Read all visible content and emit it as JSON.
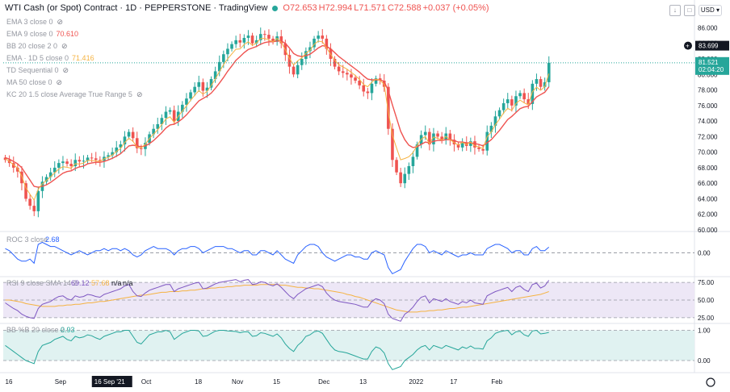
{
  "header": {
    "title": "WTI Cash (or Spot) Contract · 1D · PEPPERSTONE · TradingView",
    "open": "O72.653",
    "high": "H72.994",
    "low": "L71.571",
    "close": "C72.588",
    "change": "+0.037 (+0.05%)",
    "currency": "USD"
  },
  "indicators": [
    {
      "label": "EMA 3 close 0",
      "value": "",
      "color": "#9598a1"
    },
    {
      "label": "EMA 9 close 0",
      "value": "70.610",
      "color": "#ef5350"
    },
    {
      "label": "BB 20 close 2 0",
      "value": "",
      "color": "#9598a1"
    },
    {
      "label": "EMA · 1D 5 close 0",
      "value": "71.416",
      "color": "#f5b342"
    },
    {
      "label": "TD Sequential 0",
      "value": "",
      "color": "#9598a1"
    },
    {
      "label": "MA 50 close 0",
      "value": "",
      "color": "#9598a1"
    },
    {
      "label": "KC 20 1.5 close Average True Range 5",
      "value": "",
      "color": "#9598a1"
    }
  ],
  "colors": {
    "up": "#26a69a",
    "down": "#ef5350",
    "ema9": "#ef5350",
    "ema5": "#f5b342",
    "roc": "#2962ff",
    "rsi": "#7e57c2",
    "rsisma": "#f5b342",
    "bbpct": "#26a69a",
    "rsifill": "#ede7f6",
    "bbfill": "#e0f2f1",
    "label_blue": "#131722"
  },
  "chart_data": [
    {
      "type": "candlestick",
      "y_ticks": [
        "86.000",
        "84.000",
        "82.000",
        "80.000",
        "78.000",
        "76.000",
        "74.000",
        "72.000",
        "70.000",
        "68.000",
        "66.000",
        "64.000",
        "62.000",
        "60.000"
      ],
      "ylim": [
        60,
        87.5
      ],
      "labels": {
        "level": "83.699",
        "last_price": "81.521",
        "countdown": "02:04:20"
      },
      "closes": [
        69.0,
        68.6,
        68.0,
        67.5,
        66.0,
        64.0,
        63.1,
        62.4,
        65.0,
        66.2,
        66.8,
        67.4,
        68.0,
        68.6,
        68.8,
        68.5,
        68.2,
        69.0,
        68.8,
        68.9,
        69.3,
        69.2,
        69.0,
        68.9,
        69.4,
        69.6,
        70.0,
        70.6,
        71.0,
        72.0,
        72.6,
        71.8,
        70.5,
        70.4,
        71.2,
        72.3,
        73.0,
        73.6,
        74.4,
        75.2,
        75.4,
        74.0,
        75.2,
        76.1,
        76.9,
        77.7,
        78.4,
        79.0,
        77.9,
        78.3,
        79.4,
        80.4,
        81.6,
        82.6,
        83.3,
        83.9,
        84.4,
        84.1,
        84.7,
        85.0,
        84.0,
        84.4,
        85.2,
        85.1,
        84.6,
        84.2,
        84.9,
        84.0,
        82.5,
        81.0,
        80.0,
        81.2,
        82.0,
        83.0,
        83.5,
        84.6,
        85.0,
        84.6,
        83.3,
        82.0,
        81.0,
        80.4,
        80.2,
        80.0,
        79.6,
        79.2,
        78.6,
        77.8,
        77.6,
        78.8,
        79.5,
        79.2,
        78.4,
        73.0,
        69.0,
        67.4,
        66.0,
        67.2,
        68.2,
        69.4,
        71.0,
        72.2,
        72.6,
        71.0,
        72.4,
        72.0,
        71.6,
        72.4,
        71.6,
        71.0,
        70.6,
        71.2,
        70.8,
        71.4,
        70.6,
        70.4,
        70.2,
        72.6,
        73.4,
        74.6,
        75.4,
        76.3,
        76.8,
        76.0,
        77.2,
        77.6,
        76.8,
        76.2,
        78.8,
        79.4,
        78.4,
        79.0,
        81.5
      ],
      "ema9": [
        69.3,
        69.1,
        68.8,
        68.5,
        68.0,
        67.2,
        66.4,
        65.6,
        65.5,
        65.6,
        65.8,
        66.1,
        66.5,
        66.9,
        67.3,
        67.5,
        67.6,
        67.9,
        68.1,
        68.2,
        68.5,
        68.6,
        68.7,
        68.7,
        68.8,
        69.0,
        69.2,
        69.5,
        69.8,
        70.3,
        70.8,
        70.9,
        70.8,
        70.7,
        70.8,
        71.1,
        71.5,
        72.0,
        72.5,
        73.1,
        73.5,
        73.6,
        73.9,
        74.3,
        74.8,
        75.4,
        76.0,
        76.6,
        76.9,
        77.2,
        77.6,
        78.2,
        78.9,
        79.6,
        80.4,
        81.1,
        81.8,
        82.3,
        82.8,
        83.2,
        83.4,
        83.6,
        83.9,
        84.1,
        84.2,
        84.2,
        84.3,
        84.3,
        84.0,
        83.4,
        82.7,
        82.4,
        82.3,
        82.4,
        82.6,
        83.0,
        83.4,
        83.7,
        83.6,
        83.3,
        82.8,
        82.3,
        81.9,
        81.5,
        81.1,
        80.7,
        80.3,
        79.8,
        79.4,
        79.3,
        79.3,
        79.3,
        79.1,
        77.9,
        76.1,
        74.4,
        72.7,
        71.6,
        70.9,
        70.6,
        70.7,
        71.0,
        71.3,
        71.2,
        71.4,
        71.5,
        71.5,
        71.6,
        71.6,
        71.5,
        71.3,
        71.3,
        71.2,
        71.2,
        71.1,
        71.0,
        70.8,
        71.2,
        71.6,
        72.2,
        72.8,
        73.5,
        74.2,
        74.6,
        75.1,
        75.6,
        75.8,
        75.9,
        76.5,
        77.1,
        77.4,
        77.7,
        78.4
      ]
    },
    {
      "type": "line",
      "name": "ROC 3 close",
      "value": "2.68",
      "y_ticks": [
        "0.00"
      ],
      "baseline": 0,
      "ylim": [
        -11,
        9
      ],
      "values": [
        2,
        1,
        -1,
        -3,
        -4,
        -4,
        -3,
        -5,
        4,
        5,
        4,
        3,
        3,
        2,
        1,
        0,
        -1,
        0,
        1,
        0,
        -1,
        0,
        1,
        1,
        2,
        1,
        2,
        2,
        1,
        2,
        1,
        -1,
        -2,
        -1,
        1,
        2,
        3,
        2,
        2,
        2,
        1,
        -1,
        1,
        2,
        2,
        3,
        3,
        2,
        0,
        1,
        2,
        3,
        3,
        3,
        2,
        2,
        1,
        0,
        1,
        1,
        -1,
        -1,
        1,
        1,
        0,
        -1,
        1,
        -1,
        -3,
        -4,
        -5,
        -1,
        1,
        3,
        4,
        4,
        3,
        0,
        -2,
        -3,
        -4,
        -3,
        -2,
        -1,
        -1,
        -2,
        -2,
        -3,
        -3,
        0,
        1,
        0,
        -1,
        -7,
        -10,
        -9,
        -8,
        -4,
        -1,
        2,
        4,
        4,
        3,
        0,
        1,
        0,
        -1,
        1,
        0,
        -1,
        -2,
        -1,
        -1,
        0,
        -1,
        -1,
        -1,
        2,
        3,
        4,
        4,
        3,
        2,
        0,
        1,
        1,
        -1,
        -1,
        2,
        3,
        1,
        1,
        2.68
      ]
    },
    {
      "type": "line",
      "name": "RSI 9 close SMA 14 2",
      "values_label": [
        "69.12",
        "57.68",
        "n/a",
        "n/a"
      ],
      "y_ticks": [
        "75.00",
        "50.00",
        "25.00"
      ],
      "band": [
        25,
        75
      ],
      "ylim": [
        18,
        82
      ],
      "rsi": [
        46,
        42,
        38,
        35,
        30,
        27,
        25,
        24,
        38,
        44,
        46,
        48,
        52,
        55,
        56,
        52,
        50,
        56,
        54,
        55,
        58,
        57,
        55,
        54,
        58,
        60,
        62,
        64,
        66,
        70,
        72,
        62,
        56,
        55,
        60,
        64,
        66,
        68,
        70,
        72,
        72,
        62,
        66,
        68,
        70,
        72,
        74,
        75,
        66,
        67,
        70,
        73,
        75,
        76,
        77,
        78,
        79,
        76,
        78,
        79,
        72,
        73,
        76,
        75,
        72,
        70,
        73,
        68,
        62,
        56,
        52,
        58,
        62,
        66,
        68,
        70,
        72,
        69,
        60,
        54,
        50,
        48,
        47,
        46,
        45,
        44,
        42,
        40,
        40,
        48,
        52,
        50,
        45,
        30,
        24,
        22,
        20,
        30,
        34,
        40,
        48,
        54,
        56,
        46,
        52,
        50,
        48,
        52,
        48,
        46,
        44,
        48,
        46,
        50,
        46,
        45,
        44,
        56,
        59,
        62,
        64,
        66,
        68,
        62,
        68,
        70,
        65,
        62,
        72,
        74,
        67,
        70,
        78
      ],
      "sma": [
        50,
        50,
        49,
        48,
        47,
        45,
        44,
        43,
        42,
        41,
        41,
        41,
        41,
        42,
        42,
        43,
        43,
        44,
        44,
        45,
        46,
        46,
        47,
        48,
        48,
        49,
        50,
        51,
        52,
        53,
        54,
        55,
        56,
        57,
        57,
        58,
        59,
        60,
        61,
        61,
        62,
        62,
        62,
        63,
        63,
        64,
        64,
        65,
        66,
        66,
        67,
        67,
        68,
        68,
        69,
        69,
        70,
        70,
        71,
        71,
        71,
        71,
        72,
        72,
        72,
        72,
        72,
        71,
        71,
        70,
        69,
        68,
        68,
        67,
        67,
        66,
        66,
        65,
        64,
        63,
        62,
        61,
        60,
        58,
        57,
        55,
        54,
        52,
        50,
        48,
        46,
        44,
        42,
        40,
        38,
        36,
        35,
        34,
        33,
        33,
        33,
        34,
        34,
        35,
        35,
        36,
        36,
        37,
        38,
        38,
        39,
        40,
        40,
        41,
        42,
        43,
        44,
        45,
        46,
        47,
        48,
        49,
        50,
        51,
        52,
        53,
        54,
        55,
        56,
        57,
        58,
        60,
        62
      ]
    },
    {
      "type": "area",
      "name": "BB %B 20 close 2",
      "value": "0.93",
      "y_ticks": [
        "1.00",
        "0.00"
      ],
      "band": [
        0,
        1
      ],
      "ylim": [
        -0.4,
        1.2
      ],
      "values": [
        0.5,
        0.4,
        0.3,
        0.2,
        0.1,
        0.0,
        -0.05,
        -0.1,
        0.3,
        0.5,
        0.55,
        0.6,
        0.7,
        0.75,
        0.8,
        0.7,
        0.65,
        0.8,
        0.75,
        0.78,
        0.85,
        0.82,
        0.75,
        0.7,
        0.8,
        0.85,
        0.9,
        0.95,
        0.95,
        1.0,
        1.0,
        0.8,
        0.6,
        0.55,
        0.7,
        0.85,
        0.9,
        0.95,
        0.95,
        1.0,
        0.95,
        0.7,
        0.8,
        0.9,
        0.95,
        1.0,
        1.0,
        0.98,
        0.8,
        0.82,
        0.9,
        0.97,
        1.0,
        1.0,
        0.98,
        0.97,
        0.96,
        0.92,
        0.95,
        0.95,
        0.8,
        0.82,
        0.92,
        0.9,
        0.85,
        0.8,
        0.88,
        0.75,
        0.55,
        0.4,
        0.3,
        0.5,
        0.62,
        0.8,
        0.85,
        0.95,
        0.98,
        0.9,
        0.7,
        0.5,
        0.35,
        0.3,
        0.28,
        0.25,
        0.2,
        0.15,
        0.1,
        0.05,
        0.05,
        0.3,
        0.45,
        0.4,
        0.25,
        -0.1,
        -0.3,
        -0.25,
        -0.2,
        0.0,
        0.1,
        0.2,
        0.35,
        0.45,
        0.5,
        0.35,
        0.5,
        0.45,
        0.4,
        0.5,
        0.45,
        0.4,
        0.35,
        0.45,
        0.4,
        0.48,
        0.4,
        0.4,
        0.38,
        0.65,
        0.75,
        0.9,
        0.95,
        0.98,
        1.0,
        0.85,
        0.95,
        0.97,
        0.85,
        0.8,
        0.98,
        1.0,
        0.88,
        0.9,
        0.93
      ]
    },
    {
      "type": "time_axis",
      "x_ticks": [
        {
          "label": "16",
          "index": 0
        },
        {
          "label": "Sep",
          "index": 12
        },
        {
          "label": "16 Sep '21",
          "index": 22
        },
        {
          "label": "Oct",
          "index": 33
        },
        {
          "label": "18",
          "index": 46
        },
        {
          "label": "Nov",
          "index": 55
        },
        {
          "label": "15",
          "index": 65
        },
        {
          "label": "Dec",
          "index": 76
        },
        {
          "label": "13",
          "index": 86
        },
        {
          "label": "2022",
          "index": 98
        },
        {
          "label": "17",
          "index": 108
        },
        {
          "label": "Feb",
          "index": 118
        }
      ],
      "highlight": "16 Sep '21"
    }
  ]
}
